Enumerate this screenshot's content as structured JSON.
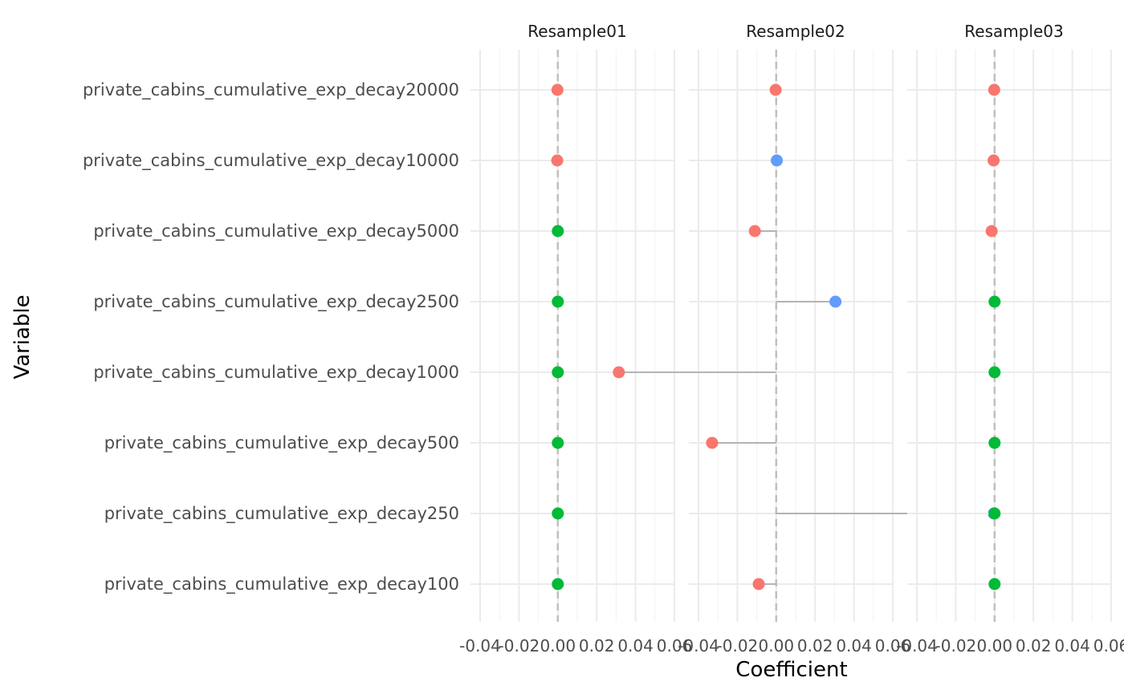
{
  "chart_data": {
    "type": "scatter",
    "subtype": "lollipop-faceted",
    "xlabel": "Coefficient",
    "ylabel": "Variable",
    "xlim": [
      -0.04,
      0.06
    ],
    "x_ticks": [
      -0.04,
      -0.02,
      0.0,
      0.02,
      0.04,
      0.06
    ],
    "x_tick_labels": [
      "-0.04",
      "-0.02",
      "0.00",
      "0.02",
      "0.04",
      "0.06"
    ],
    "reference_line_x": 0,
    "grid": true,
    "categories": [
      "private_cabins_cumulative_exp_decay20000",
      "private_cabins_cumulative_exp_decay10000",
      "private_cabins_cumulative_exp_decay5000",
      "private_cabins_cumulative_exp_decay2500",
      "private_cabins_cumulative_exp_decay1000",
      "private_cabins_cumulative_exp_decay500",
      "private_cabins_cumulative_exp_decay250",
      "private_cabins_cumulative_exp_decay100"
    ],
    "colors": {
      "negative": "#F8766D",
      "zero": "#00BA38",
      "positive": "#619CFF"
    },
    "facets": [
      {
        "name": "Resample01",
        "values": [
          -0.0002,
          -0.0003,
          0.0,
          0.0,
          0.0,
          0.0,
          0.0,
          0.0
        ],
        "signs": [
          "negative",
          "negative",
          "zero",
          "zero",
          "zero",
          "zero",
          "zero",
          "zero"
        ]
      },
      {
        "name": "Resample02",
        "values": [
          -0.0003,
          0.0003,
          -0.011,
          0.0305,
          -0.081,
          -0.033,
          0.112,
          -0.009
        ],
        "signs": [
          "negative",
          "positive",
          "negative",
          "positive",
          "negative",
          "negative",
          "positive",
          "negative"
        ]
      },
      {
        "name": "Resample03",
        "values": [
          -0.0002,
          -0.0005,
          -0.0015,
          0.0,
          0.0,
          0.0,
          0.0,
          0.0
        ],
        "signs": [
          "negative",
          "negative",
          "negative",
          "zero",
          "zero",
          "zero",
          "zero",
          "zero"
        ]
      }
    ]
  }
}
